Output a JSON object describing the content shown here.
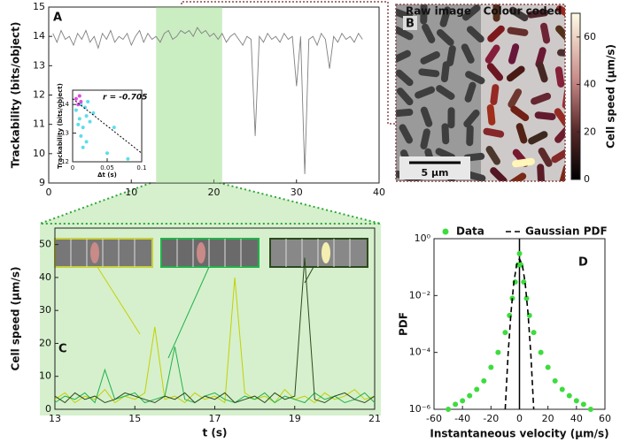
{
  "chart_data": [
    {
      "type": "line",
      "label": "A",
      "ylabel": "Trackability (bits/object)",
      "color": "#808080",
      "xlim": [
        0,
        40
      ],
      "xticks": [
        0,
        10,
        20,
        30,
        40
      ],
      "ylim": [
        9,
        15
      ],
      "yticks": [
        9,
        10,
        11,
        12,
        13,
        14,
        15
      ],
      "highlight": [
        13,
        21
      ],
      "x": [
        0.5,
        1,
        1.5,
        2,
        2.5,
        3,
        3.5,
        4,
        4.5,
        5,
        5.5,
        6,
        6.5,
        7,
        7.5,
        8,
        8.5,
        9,
        9.5,
        10,
        10.5,
        11,
        11.5,
        12,
        12.5,
        13,
        13.5,
        14,
        14.5,
        15,
        15.5,
        16,
        16.5,
        17,
        17.5,
        18,
        18.5,
        19,
        19.5,
        20,
        20.5,
        21,
        21.5,
        22,
        22.5,
        23,
        23.5,
        24,
        24.5,
        25,
        25.5,
        26,
        26.5,
        27,
        27.5,
        28,
        28.5,
        29,
        29.5,
        30,
        30.5,
        31,
        31.5,
        32,
        32.5,
        33,
        33.5,
        34,
        34.5,
        35,
        35.5,
        36,
        36.5,
        37,
        37.5,
        38
      ],
      "values": [
        14.1,
        13.8,
        14.2,
        13.9,
        14.0,
        13.7,
        14.1,
        13.9,
        14.2,
        13.8,
        14.0,
        13.6,
        14.1,
        13.9,
        14.2,
        13.8,
        14.0,
        13.9,
        14.1,
        13.7,
        14.0,
        14.2,
        13.8,
        14.1,
        13.9,
        14.0,
        13.8,
        14.1,
        14.2,
        13.9,
        14.0,
        14.2,
        14.1,
        14.2,
        14.0,
        14.3,
        14.1,
        14.2,
        14.0,
        14.1,
        13.9,
        14.1,
        13.8,
        14.0,
        14.1,
        13.9,
        13.7,
        14.0,
        13.9,
        10.6,
        14.0,
        13.8,
        14.1,
        13.9,
        14.0,
        13.8,
        14.1,
        13.9,
        14.0,
        12.3,
        14.0,
        9.3,
        13.9,
        14.0,
        13.7,
        14.1,
        13.9,
        12.9,
        14.0,
        13.8,
        14.1,
        13.9,
        14.0,
        13.8,
        14.1,
        13.9
      ]
    },
    {
      "type": "scatter",
      "xlabel": "Δt (s)",
      "ylabel": "Trackability (bits/object)",
      "annotation": "r = -0.705",
      "xlim": [
        0,
        0.1
      ],
      "xticks": [
        0,
        0.05,
        0.1
      ],
      "ylim": [
        12,
        14.5
      ],
      "yticks": [
        12,
        13,
        14
      ],
      "series": [
        {
          "color": "#33d6e6",
          "x": [
            0.005,
            0.01,
            0.012,
            0.015,
            0.018,
            0.02,
            0.022,
            0.025,
            0.03,
            0.012,
            0.008,
            0.02,
            0.05,
            0.08,
            0.06,
            0.015
          ],
          "values": [
            13.8,
            13.5,
            14.0,
            13.2,
            13.9,
            13.6,
            14.1,
            13.4,
            13.7,
            12.9,
            13.3,
            12.7,
            12.3,
            12.1,
            13.2,
            12.5
          ]
        },
        {
          "color": "#d81bd8",
          "x": [
            0.005,
            0.008,
            0.01,
            0.012
          ],
          "values": [
            14.2,
            14.0,
            14.3,
            14.1
          ]
        }
      ],
      "trend": {
        "x": [
          0,
          0.1
        ],
        "values": [
          14.2,
          12.3
        ]
      }
    },
    {
      "type": "image",
      "label": "B",
      "titles": [
        "Raw image",
        "Colour coded"
      ],
      "scalebar": "5 µm",
      "colorbar": {
        "label": "Cell speed (µm/s)",
        "ylim": [
          0,
          70
        ],
        "yticks": [
          0,
          20,
          40,
          60
        ]
      }
    },
    {
      "type": "line",
      "label": "C",
      "xlabel": "t (s)",
      "ylabel": "Cell speed (µm/s)",
      "xlim": [
        13,
        21
      ],
      "xticks": [
        13,
        15,
        17,
        19,
        21
      ],
      "ylim": [
        0,
        55
      ],
      "yticks": [
        0,
        10,
        20,
        30,
        40,
        50
      ],
      "x": [
        13,
        13.25,
        13.5,
        13.75,
        14,
        14.25,
        14.5,
        14.75,
        15,
        15.25,
        15.5,
        15.75,
        16,
        16.25,
        16.5,
        16.75,
        17,
        17.25,
        17.5,
        17.75,
        18,
        18.25,
        18.5,
        18.75,
        19,
        19.25,
        19.5,
        19.75,
        20,
        20.25,
        20.5,
        20.75,
        21
      ],
      "series": [
        {
          "color": "#c2d100",
          "values": [
            3,
            5,
            2,
            4,
            3,
            6,
            2,
            4,
            3,
            5,
            25,
            3,
            4,
            2,
            5,
            3,
            4,
            2,
            40,
            5,
            3,
            4,
            2,
            6,
            3,
            4,
            2,
            5,
            3,
            4,
            6,
            3,
            4
          ]
        },
        {
          "color": "#22b14c",
          "values": [
            2,
            4,
            3,
            5,
            2,
            12,
            3,
            4,
            5,
            2,
            3,
            4,
            19,
            3,
            2,
            4,
            5,
            3,
            2,
            4,
            3,
            5,
            2,
            4,
            3,
            2,
            5,
            3,
            4,
            2,
            3,
            5,
            2
          ]
        },
        {
          "color": "#2d4a1e",
          "values": [
            4,
            2,
            5,
            3,
            4,
            2,
            3,
            5,
            4,
            3,
            2,
            4,
            3,
            5,
            2,
            4,
            3,
            5,
            2,
            3,
            4,
            2,
            5,
            3,
            4,
            46,
            3,
            2,
            4,
            5,
            3,
            2,
            4
          ]
        }
      ]
    },
    {
      "type": "scatter",
      "label": "D",
      "xlabel": "Instantaneous velocity (µm/s)",
      "ylabel": "PDF",
      "yscale": "log",
      "xlim": [
        -60,
        60
      ],
      "xticks": [
        -60,
        -40,
        -20,
        0,
        20,
        40,
        60
      ],
      "ylim": [
        1e-06,
        1
      ],
      "yticks": [
        {
          "value": 1e-06,
          "label": "10⁻⁶"
        },
        {
          "value": 0.0001,
          "label": "10⁻⁴"
        },
        {
          "value": 0.01,
          "label": "10⁻²"
        },
        {
          "value": 1,
          "label": "10⁰"
        }
      ],
      "series": [
        {
          "name": "Data",
          "color": "#3ddc3d",
          "style": "dots",
          "x": [
            -50,
            -45,
            -40,
            -35,
            -30,
            -25,
            -20,
            -15,
            -10,
            -7,
            -5,
            -3,
            -1,
            0,
            1,
            3,
            5,
            7,
            10,
            15,
            20,
            25,
            30,
            35,
            40,
            45,
            50
          ],
          "values": [
            1e-06,
            1.5e-06,
            2e-06,
            3e-06,
            5e-06,
            1e-05,
            3e-05,
            0.0001,
            0.0005,
            0.002,
            0.008,
            0.03,
            0.12,
            0.3,
            0.12,
            0.03,
            0.008,
            0.002,
            0.0005,
            0.0001,
            3e-05,
            1e-05,
            5e-06,
            3e-06,
            2e-06,
            1.5e-06,
            1e-06
          ]
        },
        {
          "name": "Gaussian PDF",
          "color": "#000000",
          "style": "dashed",
          "x": [
            -10,
            -8,
            -6,
            -4,
            -2,
            0,
            2,
            4,
            6,
            8,
            10
          ],
          "values": [
            1e-06,
            8.1e-05,
            0.0025,
            0.028,
            0.121,
            0.197,
            0.121,
            0.028,
            0.0025,
            8.1e-05,
            1e-06
          ]
        }
      ]
    }
  ]
}
